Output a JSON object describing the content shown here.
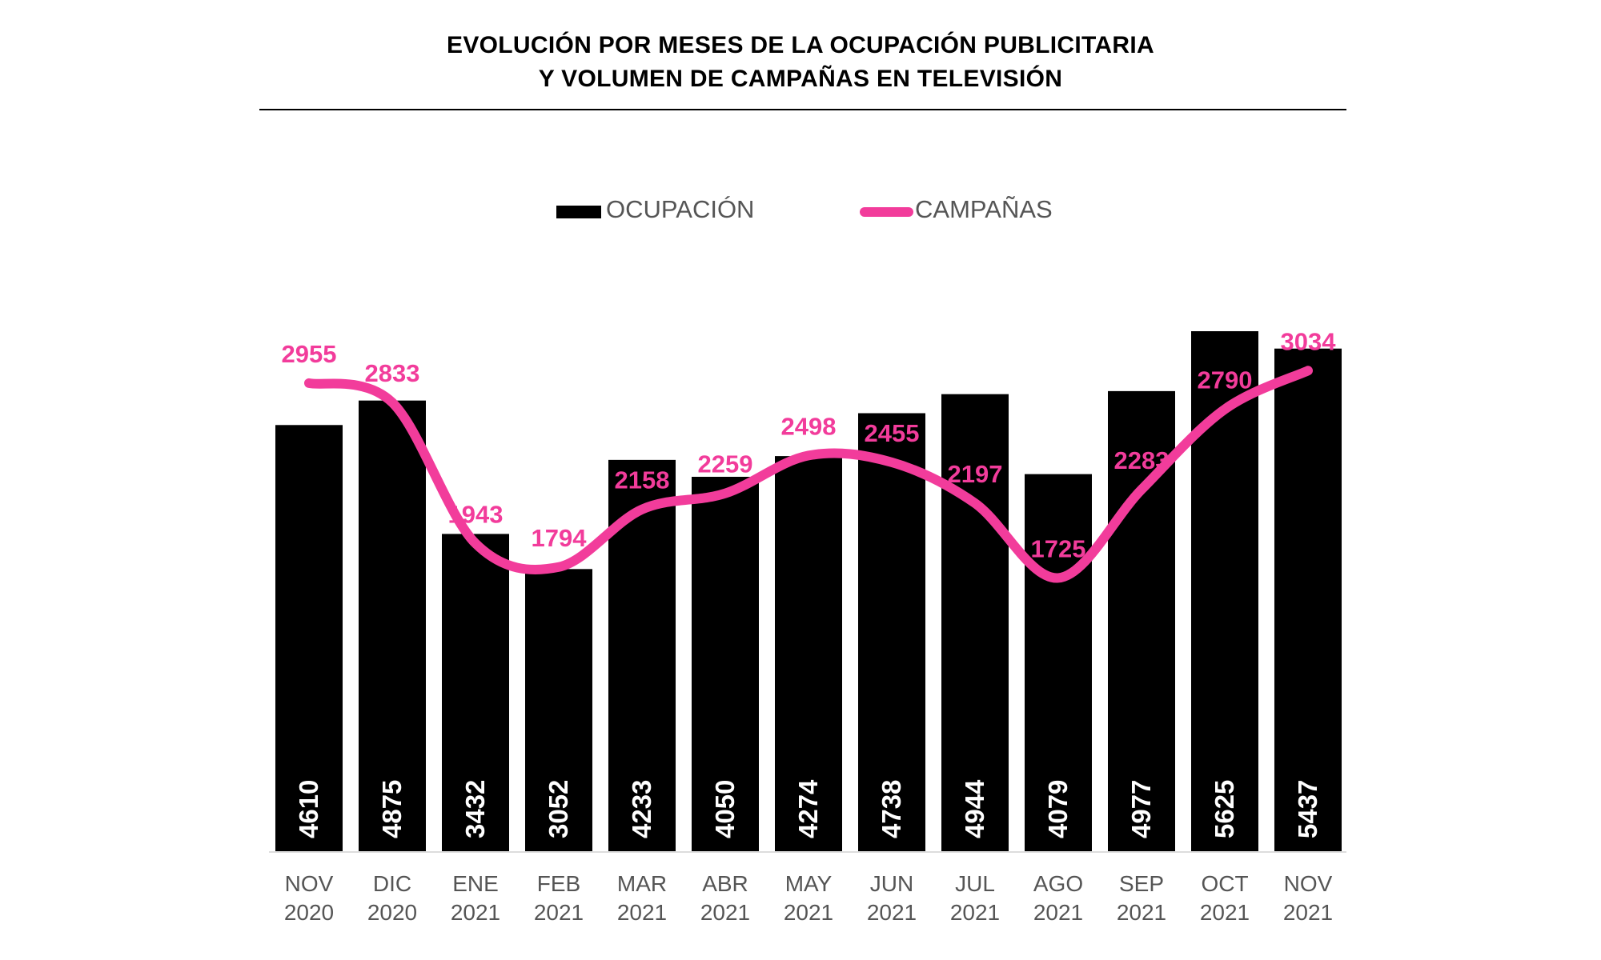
{
  "title_line1": "EVOLUCIÓN POR MESES DE LA OCUPACIÓN PUBLICITARIA",
  "title_line2": "Y VOLUMEN DE CAMPAÑAS EN TELEVISIÓN",
  "chart_data": {
    "type": "bar+line",
    "categories": [
      [
        "NOV",
        "2020"
      ],
      [
        "DIC",
        "2020"
      ],
      [
        "ENE",
        "2021"
      ],
      [
        "FEB",
        "2021"
      ],
      [
        "MAR",
        "2021"
      ],
      [
        "ABR",
        "2021"
      ],
      [
        "MAY",
        "2021"
      ],
      [
        "JUN",
        "2021"
      ],
      [
        "JUL",
        "2021"
      ],
      [
        "AGO",
        "2021"
      ],
      [
        "SEP",
        "2021"
      ],
      [
        "OCT",
        "2021"
      ],
      [
        "NOV",
        "2021"
      ]
    ],
    "series": [
      {
        "name": "OCUPACIÓN",
        "type": "bar",
        "color": "#000000",
        "values": [
          4610,
          4875,
          3432,
          3052,
          4233,
          4050,
          4274,
          4738,
          4944,
          4079,
          4977,
          5625,
          5437
        ]
      },
      {
        "name": "CAMPAÑAS",
        "type": "line",
        "smooth": true,
        "color": "#F23C9B",
        "values": [
          2955,
          2833,
          1943,
          1794,
          2158,
          2259,
          2498,
          2455,
          2197,
          1725,
          2283,
          2790,
          3034
        ]
      }
    ],
    "legend_position": "top",
    "grid": false,
    "y_axis_visible": false
  }
}
